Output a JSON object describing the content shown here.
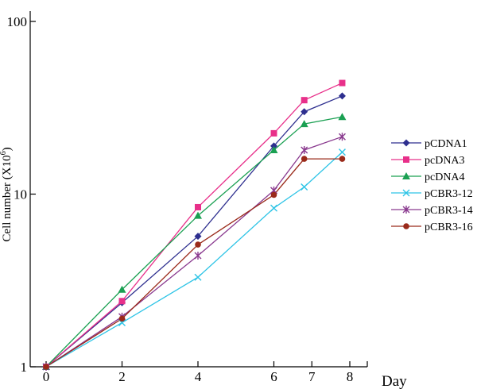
{
  "chart_data": {
    "type": "line",
    "ylabel": "Cell number (X10",
    "ylabel_sup": "6",
    "ylabel_close": ")",
    "xlabel": "Day",
    "y_scale": "log",
    "ylim": [
      1,
      100
    ],
    "yticks": [
      1,
      10,
      100
    ],
    "ytick_labels": [
      "1",
      "10",
      "100"
    ],
    "xlim": [
      0,
      8
    ],
    "xticks": [
      0,
      2,
      4,
      6,
      7,
      8
    ],
    "xtick_labels": [
      "0",
      "2",
      "4",
      "6",
      "7",
      "8"
    ],
    "grid": false,
    "legend_position": "right",
    "series": [
      {
        "name": "pCDNA1",
        "color": "#2e2f8f",
        "marker": "diamond",
        "x": [
          0,
          2,
          4,
          6,
          6.8,
          7.8
        ],
        "y": [
          1,
          2.35,
          5.7,
          19,
          30,
          37
        ]
      },
      {
        "name": "pcDNA3",
        "color": "#e8308a",
        "marker": "square",
        "x": [
          0,
          2,
          4,
          6,
          6.8,
          7.8
        ],
        "y": [
          1,
          2.4,
          8.4,
          22.5,
          35,
          44
        ]
      },
      {
        "name": "pcDNA4",
        "color": "#1aa052",
        "marker": "triangle",
        "x": [
          0,
          2,
          4,
          6,
          6.8,
          7.8
        ],
        "y": [
          1,
          2.8,
          7.5,
          18,
          25.5,
          28
        ]
      },
      {
        "name": "pCBR3-12",
        "color": "#2ec4e6",
        "marker": "x",
        "x": [
          0,
          2,
          4,
          6,
          6.8,
          7.8
        ],
        "y": [
          1,
          1.8,
          3.3,
          8.3,
          11,
          17.5
        ]
      },
      {
        "name": "pCBR3-14",
        "color": "#8a3a8f",
        "marker": "star",
        "x": [
          0,
          2,
          4,
          6,
          6.8,
          7.8
        ],
        "y": [
          1,
          1.95,
          4.4,
          10.5,
          18,
          21.5
        ]
      },
      {
        "name": "pCBR3-16",
        "color": "#9a2a1a",
        "marker": "circle",
        "x": [
          0,
          2,
          4,
          6,
          6.8,
          7.8
        ],
        "y": [
          1,
          1.9,
          5.1,
          9.9,
          16,
          16
        ]
      }
    ]
  }
}
